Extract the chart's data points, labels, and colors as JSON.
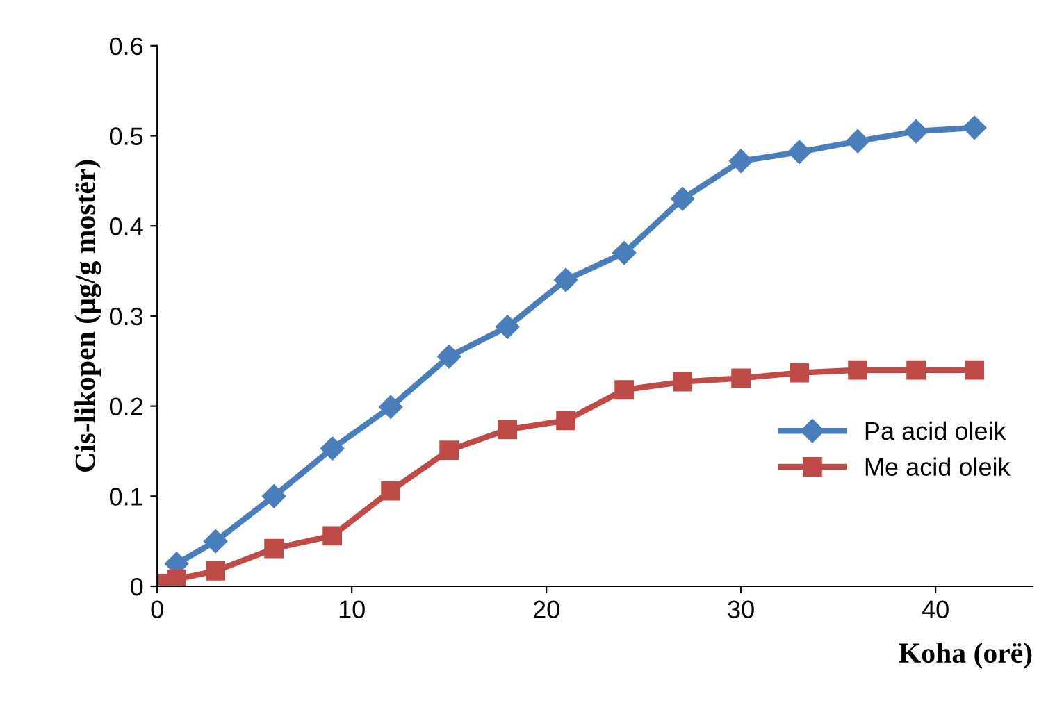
{
  "chart_data": {
    "type": "line",
    "xlabel": "Koha (orë)",
    "ylabel": "Cis-likopen (µg/g mostër)",
    "xlim": [
      0,
      45
    ],
    "xticks": [
      0,
      10,
      20,
      30,
      40
    ],
    "ylim": [
      0,
      0.6
    ],
    "yticks": [
      0,
      0.1,
      0.2,
      0.3,
      0.4,
      0.5,
      0.6
    ],
    "grid": false,
    "legend": "right",
    "series": [
      {
        "name": "Pa acid oleik",
        "color": "#4a7ebb",
        "marker": "diamond",
        "x": [
          1,
          3,
          6,
          9,
          12,
          15,
          18,
          21,
          24,
          27,
          30,
          33,
          36,
          39,
          42
        ],
        "values": [
          0.025,
          0.05,
          0.1,
          0.153,
          0.199,
          0.255,
          0.288,
          0.34,
          0.37,
          0.43,
          0.472,
          0.482,
          0.494,
          0.505,
          0.509
        ]
      },
      {
        "name": "Me acid oleik",
        "color": "#be4b48",
        "marker": "square",
        "x": [
          0.5,
          1,
          3,
          6,
          9,
          12,
          15,
          18,
          21,
          24,
          27,
          30,
          33,
          36,
          39,
          42
        ],
        "values": [
          0.003,
          0.008,
          0.017,
          0.042,
          0.056,
          0.106,
          0.151,
          0.174,
          0.184,
          0.218,
          0.227,
          0.231,
          0.237,
          0.24,
          0.24,
          0.24
        ]
      }
    ]
  }
}
